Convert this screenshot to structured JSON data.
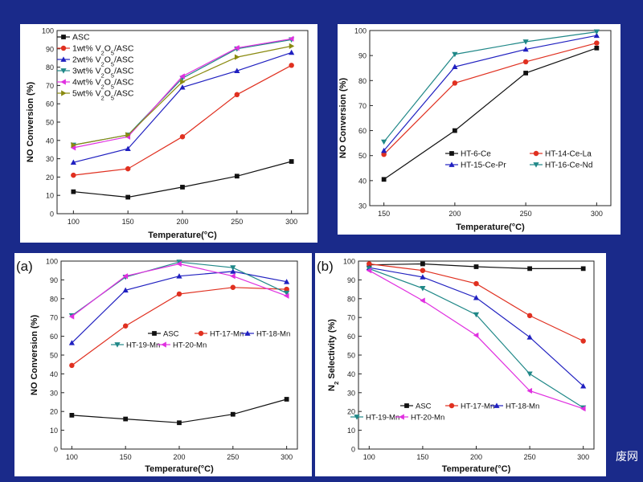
{
  "colors": {
    "background": "#1a2a8a",
    "black": "#111111",
    "red": "#e03020",
    "blue": "#2020c0",
    "teal": "#208888",
    "magenta": "#e030e0",
    "olive": "#8a8a10"
  },
  "watermark": "废网",
  "chart_data": [
    {
      "type": "line",
      "xlabel": "Temperature(°C)",
      "ylabel": "NO Conversion (%)",
      "xlim": [
        85,
        315
      ],
      "ylim": [
        0,
        100
      ],
      "xticks": [
        100,
        150,
        200,
        250,
        300
      ],
      "yticks": [
        0,
        10,
        20,
        30,
        40,
        50,
        60,
        70,
        80,
        90,
        100
      ],
      "legend": "top-left",
      "series": [
        {
          "name": "ASC",
          "color": "#111111",
          "marker": "square",
          "x": [
            100,
            150,
            200,
            250,
            300
          ],
          "y": [
            12,
            9,
            14.5,
            20.5,
            28.5
          ]
        },
        {
          "name": "1wt% V2O5/ASC",
          "color": "#e03020",
          "marker": "circle",
          "x": [
            100,
            150,
            200,
            250,
            300
          ],
          "y": [
            21,
            24.5,
            42,
            65,
            81
          ]
        },
        {
          "name": "2wt% V2O5/ASC",
          "color": "#2020c0",
          "marker": "tri-up",
          "x": [
            100,
            150,
            200,
            250,
            300
          ],
          "y": [
            28,
            35.5,
            69,
            78,
            88
          ]
        },
        {
          "name": "3wt% V2O5/ASC",
          "color": "#208888",
          "marker": "tri-down",
          "x": [
            100,
            150,
            200,
            250,
            300
          ],
          "y": [
            37.5,
            43,
            74,
            90,
            95
          ]
        },
        {
          "name": "4wt% V2O5/ASC",
          "color": "#e030e0",
          "marker": "tri-left",
          "x": [
            100,
            150,
            200,
            250,
            300
          ],
          "y": [
            36,
            42,
            75,
            90.5,
            95.5
          ]
        },
        {
          "name": "5wt% V2O5/ASC",
          "color": "#8a8a10",
          "marker": "tri-right",
          "x": [
            100,
            150,
            200,
            250,
            300
          ],
          "y": [
            37.5,
            43,
            72,
            85.5,
            91.5
          ]
        }
      ]
    },
    {
      "type": "line",
      "xlabel": "Temperature(°C)",
      "ylabel": "NO Conversion (%)",
      "xlim": [
        140,
        310
      ],
      "ylim": [
        30,
        100
      ],
      "xticks": [
        150,
        200,
        250,
        300
      ],
      "yticks": [
        30,
        40,
        50,
        60,
        70,
        80,
        90,
        100
      ],
      "legend": "bottom-right",
      "series": [
        {
          "name": "HT-6-Ce",
          "color": "#111111",
          "marker": "square",
          "x": [
            150,
            200,
            250,
            300
          ],
          "y": [
            40.5,
            60,
            83,
            93
          ]
        },
        {
          "name": "HT-14-Ce-La",
          "color": "#e03020",
          "marker": "circle",
          "x": [
            150,
            200,
            250,
            300
          ],
          "y": [
            50.5,
            79,
            87.5,
            95
          ]
        },
        {
          "name": "HT-15-Ce-Pr",
          "color": "#2020c0",
          "marker": "tri-up",
          "x": [
            150,
            200,
            250,
            300
          ],
          "y": [
            52,
            85.5,
            92.5,
            98
          ]
        },
        {
          "name": "HT-16-Ce-Nd",
          "color": "#208888",
          "marker": "tri-down",
          "x": [
            150,
            200,
            250,
            300
          ],
          "y": [
            55.5,
            90.5,
            95.5,
            99.5
          ]
        }
      ]
    },
    {
      "type": "line",
      "panel_label": "(a)",
      "xlabel": "Temperature(°C)",
      "ylabel": "NO Conversion (%)",
      "xlim": [
        90,
        310
      ],
      "ylim": [
        0,
        100
      ],
      "xticks": [
        100,
        150,
        200,
        250,
        300
      ],
      "yticks": [
        0,
        10,
        20,
        30,
        40,
        50,
        60,
        70,
        80,
        90,
        100
      ],
      "legend": "center-right",
      "series": [
        {
          "name": "ASC",
          "color": "#111111",
          "marker": "square",
          "x": [
            100,
            150,
            200,
            250,
            300
          ],
          "y": [
            18,
            16,
            14,
            18.5,
            26.5
          ]
        },
        {
          "name": "HT-17-Mn",
          "color": "#e03020",
          "marker": "circle",
          "x": [
            100,
            150,
            200,
            250,
            300
          ],
          "y": [
            44.5,
            65.5,
            82.5,
            86,
            85
          ]
        },
        {
          "name": "HT-18-Mn",
          "color": "#2020c0",
          "marker": "tri-up",
          "x": [
            100,
            150,
            200,
            250,
            300
          ],
          "y": [
            56.5,
            84.5,
            92,
            94.5,
            89
          ]
        },
        {
          "name": "HT-19-Mn",
          "color": "#208888",
          "marker": "tri-down",
          "x": [
            100,
            150,
            200,
            250,
            300
          ],
          "y": [
            71,
            91.5,
            99.5,
            96.5,
            83
          ]
        },
        {
          "name": "HT-20-Mn",
          "color": "#e030e0",
          "marker": "tri-left",
          "x": [
            100,
            150,
            200,
            250,
            300
          ],
          "y": [
            70.5,
            92,
            98.5,
            92,
            81.5
          ]
        }
      ]
    },
    {
      "type": "line",
      "panel_label": "(b)",
      "xlabel": "Temperature(°C)",
      "ylabel": "N2 Selectivity (%)",
      "xlim": [
        90,
        310
      ],
      "ylim": [
        0,
        100
      ],
      "xticks": [
        100,
        150,
        200,
        250,
        300
      ],
      "yticks": [
        0,
        10,
        20,
        30,
        40,
        50,
        60,
        70,
        80,
        90,
        100
      ],
      "legend": "bottom-left",
      "series": [
        {
          "name": "ASC",
          "color": "#111111",
          "marker": "square",
          "x": [
            100,
            150,
            200,
            250,
            300
          ],
          "y": [
            98,
            98.5,
            97,
            96,
            96
          ]
        },
        {
          "name": "HT-17-Mn",
          "color": "#e03020",
          "marker": "circle",
          "x": [
            100,
            150,
            200,
            250,
            300
          ],
          "y": [
            98.5,
            95,
            88,
            71,
            57.5
          ]
        },
        {
          "name": "HT-18-Mn",
          "color": "#2020c0",
          "marker": "tri-up",
          "x": [
            100,
            150,
            200,
            250,
            300
          ],
          "y": [
            96.5,
            91.5,
            80.5,
            59.5,
            33.5
          ]
        },
        {
          "name": "HT-19-Mn",
          "color": "#208888",
          "marker": "tri-down",
          "x": [
            100,
            150,
            200,
            250,
            300
          ],
          "y": [
            96,
            85.5,
            71.5,
            40,
            22
          ]
        },
        {
          "name": "HT-20-Mn",
          "color": "#e030e0",
          "marker": "tri-left",
          "x": [
            100,
            150,
            200,
            250,
            300
          ],
          "y": [
            95,
            79,
            60.5,
            31,
            21.5
          ]
        }
      ]
    }
  ]
}
